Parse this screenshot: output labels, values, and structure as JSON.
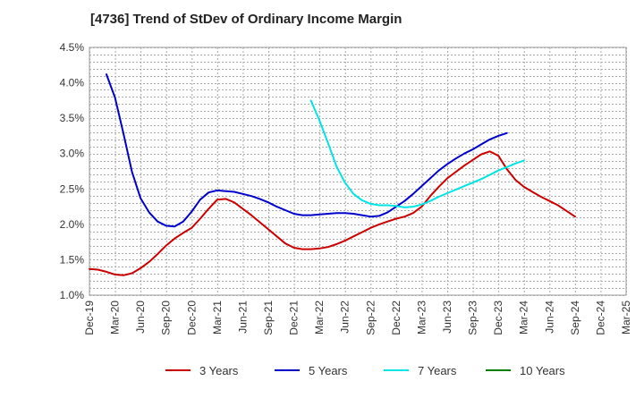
{
  "chart_data": {
    "type": "line",
    "title": "[4736]  Trend of StDev of Ordinary Income Margin",
    "xlabel": "",
    "ylabel": "",
    "x_ticks": [
      "Dec-19",
      "Mar-20",
      "Jun-20",
      "Sep-20",
      "Dec-20",
      "Mar-21",
      "Jun-21",
      "Sep-21",
      "Dec-21",
      "Mar-22",
      "Jun-22",
      "Sep-22",
      "Dec-22",
      "Mar-23",
      "Jun-23",
      "Sep-23",
      "Dec-23",
      "Mar-24",
      "Jun-24",
      "Sep-24",
      "Dec-24",
      "Mar-25"
    ],
    "y_ticks": [
      "1.0%",
      "1.5%",
      "2.0%",
      "2.5%",
      "3.0%",
      "3.5%",
      "4.0%",
      "4.5%"
    ],
    "ylim": [
      1.0,
      4.5
    ],
    "grid": true,
    "legend_position": "bottom",
    "series": [
      {
        "name": "3 Years",
        "color": "#cc0000",
        "values": [
          1.37,
          1.36,
          1.33,
          1.29,
          1.28,
          1.31,
          1.38,
          1.47,
          1.58,
          1.7,
          1.8,
          1.88,
          1.95,
          2.08,
          2.22,
          2.35,
          2.36,
          2.31,
          2.22,
          2.13,
          2.03,
          1.93,
          1.83,
          1.73,
          1.67,
          1.65,
          1.65,
          1.66,
          1.68,
          1.72,
          1.77,
          1.83,
          1.89,
          1.95,
          2.0,
          2.04,
          2.08,
          2.11,
          2.16,
          2.25,
          2.4,
          2.53,
          2.65,
          2.74,
          2.83,
          2.91,
          2.99,
          3.03,
          2.97,
          2.78,
          2.63,
          2.53,
          2.46,
          2.39,
          2.33,
          2.27,
          2.19,
          2.11
        ]
      },
      {
        "name": "5 Years",
        "color": "#0000cc",
        "values": [
          null,
          null,
          4.12,
          3.79,
          3.28,
          2.74,
          2.37,
          2.17,
          2.04,
          1.98,
          1.97,
          2.04,
          2.18,
          2.35,
          2.45,
          2.48,
          2.47,
          2.46,
          2.43,
          2.4,
          2.36,
          2.31,
          2.25,
          2.2,
          2.15,
          2.13,
          2.13,
          2.14,
          2.15,
          2.16,
          2.16,
          2.15,
          2.13,
          2.11,
          2.12,
          2.17,
          2.25,
          2.33,
          2.43,
          2.54,
          2.65,
          2.76,
          2.85,
          2.93,
          3.0,
          3.06,
          3.13,
          3.2,
          3.25,
          3.29
        ]
      },
      {
        "name": "7 Years",
        "color": "#00e5e5",
        "values": [
          null,
          null,
          null,
          null,
          null,
          null,
          null,
          null,
          null,
          null,
          null,
          null,
          null,
          null,
          null,
          null,
          null,
          null,
          null,
          null,
          null,
          null,
          null,
          null,
          null,
          null,
          3.75,
          3.47,
          3.15,
          2.82,
          2.59,
          2.43,
          2.34,
          2.29,
          2.27,
          2.27,
          2.26,
          2.24,
          2.25,
          2.28,
          2.33,
          2.39,
          2.44,
          2.49,
          2.54,
          2.59,
          2.64,
          2.7,
          2.76,
          2.81,
          2.86,
          2.9
        ]
      },
      {
        "name": "10 Years",
        "color": "#008000",
        "values": []
      }
    ]
  }
}
